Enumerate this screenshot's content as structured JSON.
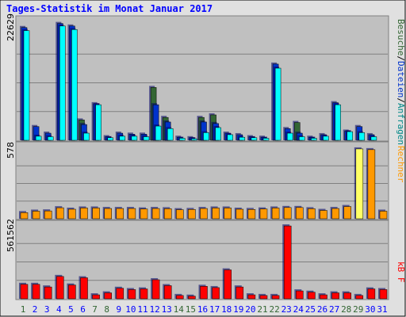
{
  "title": "Tages-Statistik im Monat Januar 2017",
  "colors": {
    "frame": "#e0e0e0",
    "panel": "#c0c0c0",
    "title": "#0000ff",
    "grid": "#808080",
    "weekend": "#336633",
    "day": "#0000ff",
    "visits": "#336633",
    "files": "#0033cc",
    "requests": "#00ffff",
    "kbf": "#ff0000",
    "sites": "#ff9900",
    "sites_highlight": "#ffff66"
  },
  "legend": {
    "anfragen": "Anfragen",
    "dateien": "Dateien",
    "besuche": "Besuche",
    "rechner": "Rechner",
    "kbf": "kB F",
    "slash": "/"
  },
  "chart_data": [
    {
      "type": "bar",
      "id": "hits",
      "y_label": "22629",
      "ylim": [
        0,
        22629
      ],
      "categories": [
        "1",
        "2",
        "3",
        "4",
        "5",
        "6",
        "7",
        "8",
        "9",
        "10",
        "11",
        "12",
        "13",
        "14",
        "15",
        "16",
        "17",
        "18",
        "19",
        "20",
        "21",
        "22",
        "23",
        "24",
        "25",
        "26",
        "27",
        "28",
        "29",
        "30",
        "31"
      ],
      "weekend_days": [
        "1",
        "7",
        "8",
        "14",
        "15",
        "21",
        "22",
        "28",
        "29"
      ],
      "series": [
        {
          "name": "Besuche",
          "values": [
            0,
            0,
            0,
            0,
            0,
            4000,
            0,
            0,
            0,
            0,
            0,
            10400,
            4500,
            0,
            0,
            4500,
            5000,
            0,
            0,
            0,
            0,
            0,
            0,
            3500,
            0,
            0,
            0,
            0,
            0,
            0,
            0
          ]
        },
        {
          "name": "Dateien",
          "values": [
            22200,
            2700,
            1400,
            23000,
            22500,
            3100,
            7200,
            700,
            1400,
            1200,
            1200,
            7000,
            3600,
            600,
            500,
            3600,
            3300,
            1400,
            1100,
            700,
            600,
            15000,
            2300,
            1400,
            600,
            1100,
            7400,
            1800,
            2700,
            1100,
            0
          ]
        },
        {
          "name": "Anfragen",
          "values": [
            21600,
            800,
            700,
            22500,
            21800,
            1400,
            7000,
            500,
            800,
            800,
            700,
            2800,
            2300,
            400,
            300,
            1500,
            2500,
            1100,
            600,
            500,
            400,
            14200,
            1400,
            700,
            400,
            800,
            7000,
            1700,
            1500,
            700,
            0
          ]
        }
      ]
    },
    {
      "type": "bar",
      "id": "sites",
      "y_label": "578",
      "ylim": [
        0,
        578
      ],
      "categories": [
        "1",
        "2",
        "3",
        "4",
        "5",
        "6",
        "7",
        "8",
        "9",
        "10",
        "11",
        "12",
        "13",
        "14",
        "15",
        "16",
        "17",
        "18",
        "19",
        "20",
        "21",
        "22",
        "23",
        "24",
        "25",
        "26",
        "27",
        "28",
        "29",
        "30",
        "31"
      ],
      "series": [
        {
          "name": "Rechner",
          "values": [
            50,
            62,
            64,
            90,
            78,
            88,
            88,
            84,
            84,
            84,
            80,
            84,
            82,
            74,
            76,
            84,
            88,
            88,
            78,
            76,
            80,
            88,
            92,
            92,
            82,
            68,
            84,
            100,
            572,
            566,
            62
          ]
        }
      ]
    },
    {
      "type": "bar",
      "id": "kbf",
      "y_label": "561562",
      "ylim": [
        0,
        561562
      ],
      "categories": [
        "1",
        "2",
        "3",
        "4",
        "5",
        "6",
        "7",
        "8",
        "9",
        "10",
        "11",
        "12",
        "13",
        "14",
        "15",
        "16",
        "17",
        "18",
        "19",
        "20",
        "21",
        "22",
        "23",
        "24",
        "25",
        "26",
        "27",
        "28",
        "29",
        "30",
        "31"
      ],
      "series": [
        {
          "name": "kB F",
          "values": [
            110000,
            110000,
            90000,
            170000,
            105000,
            160000,
            30000,
            45000,
            80000,
            70000,
            75000,
            145000,
            100000,
            25000,
            20000,
            95000,
            85000,
            220000,
            90000,
            30000,
            25000,
            25000,
            555000,
            60000,
            50000,
            30000,
            45000,
            45000,
            25000,
            75000,
            70000
          ]
        }
      ]
    }
  ]
}
